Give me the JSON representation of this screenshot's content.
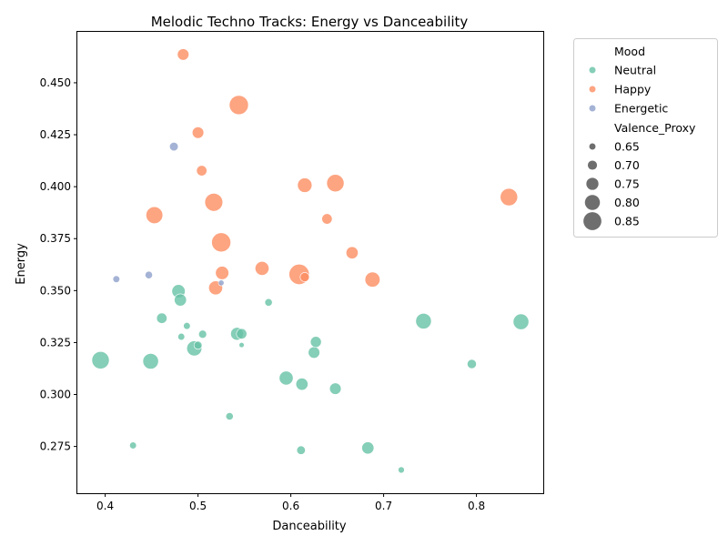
{
  "chart_data": {
    "type": "scatter",
    "title": "Melodic Techno Tracks: Energy vs Danceability",
    "xlabel": "Danceability",
    "ylabel": "Energy",
    "xlim": [
      0.37,
      0.872
    ],
    "ylim": [
      0.2525,
      0.4745
    ],
    "xticks": [
      0.4,
      0.5,
      0.6,
      0.7,
      0.8
    ],
    "yticks": [
      0.275,
      0.3,
      0.325,
      0.35,
      0.375,
      0.4,
      0.425,
      0.45
    ],
    "xtick_labels": [
      "0.4",
      "0.5",
      "0.6",
      "0.7",
      "0.8"
    ],
    "ytick_labels": [
      "0.275",
      "0.300",
      "0.325",
      "0.350",
      "0.375",
      "0.400",
      "0.425",
      "0.450"
    ],
    "grid": false,
    "legend": {
      "placement": "outside-right",
      "hue_title": "Mood",
      "hue_entries": [
        {
          "label": "Neutral",
          "color": "#66c2a5"
        },
        {
          "label": "Happy",
          "color": "#fc8d62"
        },
        {
          "label": "Energetic",
          "color": "#8da0cb"
        }
      ],
      "size_title": "Valence_Proxy",
      "size_entries": [
        {
          "label": "0.65",
          "value": 0.65
        },
        {
          "label": "0.70",
          "value": 0.7
        },
        {
          "label": "0.75",
          "value": 0.75
        },
        {
          "label": "0.80",
          "value": 0.8
        },
        {
          "label": "0.85",
          "value": 0.85
        }
      ]
    },
    "series": [
      {
        "name": "Neutral",
        "color": "#66c2a5",
        "points": [
          {
            "x": 0.395,
            "y": 0.3165,
            "valence": 0.84
          },
          {
            "x": 0.43,
            "y": 0.2755,
            "valence": 0.66
          },
          {
            "x": 0.449,
            "y": 0.316,
            "valence": 0.81
          },
          {
            "x": 0.461,
            "y": 0.3367,
            "valence": 0.72
          },
          {
            "x": 0.479,
            "y": 0.3497,
            "valence": 0.77
          },
          {
            "x": 0.481,
            "y": 0.3455,
            "valence": 0.75
          },
          {
            "x": 0.482,
            "y": 0.3278,
            "valence": 0.66
          },
          {
            "x": 0.488,
            "y": 0.333,
            "valence": 0.66
          },
          {
            "x": 0.496,
            "y": 0.3222,
            "valence": 0.8
          },
          {
            "x": 0.5,
            "y": 0.3237,
            "valence": 0.68
          },
          {
            "x": 0.505,
            "y": 0.329,
            "valence": 0.68
          },
          {
            "x": 0.534,
            "y": 0.2895,
            "valence": 0.67
          },
          {
            "x": 0.542,
            "y": 0.3292,
            "valence": 0.76
          },
          {
            "x": 0.547,
            "y": 0.3292,
            "valence": 0.72
          },
          {
            "x": 0.547,
            "y": 0.3238,
            "valence": 0.63
          },
          {
            "x": 0.576,
            "y": 0.3443,
            "valence": 0.67
          },
          {
            "x": 0.595,
            "y": 0.3079,
            "valence": 0.78
          },
          {
            "x": 0.611,
            "y": 0.2732,
            "valence": 0.69
          },
          {
            "x": 0.612,
            "y": 0.305,
            "valence": 0.75
          },
          {
            "x": 0.625,
            "y": 0.3202,
            "valence": 0.74
          },
          {
            "x": 0.627,
            "y": 0.3253,
            "valence": 0.73
          },
          {
            "x": 0.648,
            "y": 0.3028,
            "valence": 0.74
          },
          {
            "x": 0.683,
            "y": 0.2743,
            "valence": 0.75
          },
          {
            "x": 0.719,
            "y": 0.2637,
            "valence": 0.65
          },
          {
            "x": 0.743,
            "y": 0.3353,
            "valence": 0.81
          },
          {
            "x": 0.795,
            "y": 0.3147,
            "valence": 0.7
          },
          {
            "x": 0.848,
            "y": 0.335,
            "valence": 0.81
          }
        ]
      },
      {
        "name": "Happy",
        "color": "#fc8d62",
        "points": [
          {
            "x": 0.453,
            "y": 0.3863,
            "valence": 0.83
          },
          {
            "x": 0.484,
            "y": 0.4636,
            "valence": 0.74
          },
          {
            "x": 0.5,
            "y": 0.426,
            "valence": 0.74
          },
          {
            "x": 0.504,
            "y": 0.4077,
            "valence": 0.72
          },
          {
            "x": 0.517,
            "y": 0.3925,
            "valence": 0.85
          },
          {
            "x": 0.519,
            "y": 0.3513,
            "valence": 0.78
          },
          {
            "x": 0.525,
            "y": 0.3732,
            "valence": 0.87
          },
          {
            "x": 0.526,
            "y": 0.3585,
            "valence": 0.77
          },
          {
            "x": 0.544,
            "y": 0.4393,
            "valence": 0.87
          },
          {
            "x": 0.569,
            "y": 0.3607,
            "valence": 0.78
          },
          {
            "x": 0.609,
            "y": 0.3578,
            "valence": 0.89
          },
          {
            "x": 0.615,
            "y": 0.3565,
            "valence": 0.7
          },
          {
            "x": 0.615,
            "y": 0.4007,
            "valence": 0.79
          },
          {
            "x": 0.639,
            "y": 0.3845,
            "valence": 0.72
          },
          {
            "x": 0.648,
            "y": 0.4017,
            "valence": 0.84
          },
          {
            "x": 0.666,
            "y": 0.3682,
            "valence": 0.75
          },
          {
            "x": 0.688,
            "y": 0.3553,
            "valence": 0.8
          },
          {
            "x": 0.835,
            "y": 0.395,
            "valence": 0.84
          }
        ]
      },
      {
        "name": "Energetic",
        "color": "#8da0cb",
        "points": [
          {
            "x": 0.412,
            "y": 0.3555,
            "valence": 0.66
          },
          {
            "x": 0.447,
            "y": 0.3575,
            "valence": 0.67
          },
          {
            "x": 0.474,
            "y": 0.4193,
            "valence": 0.69
          },
          {
            "x": 0.525,
            "y": 0.3537,
            "valence": 0.64
          }
        ]
      }
    ]
  }
}
